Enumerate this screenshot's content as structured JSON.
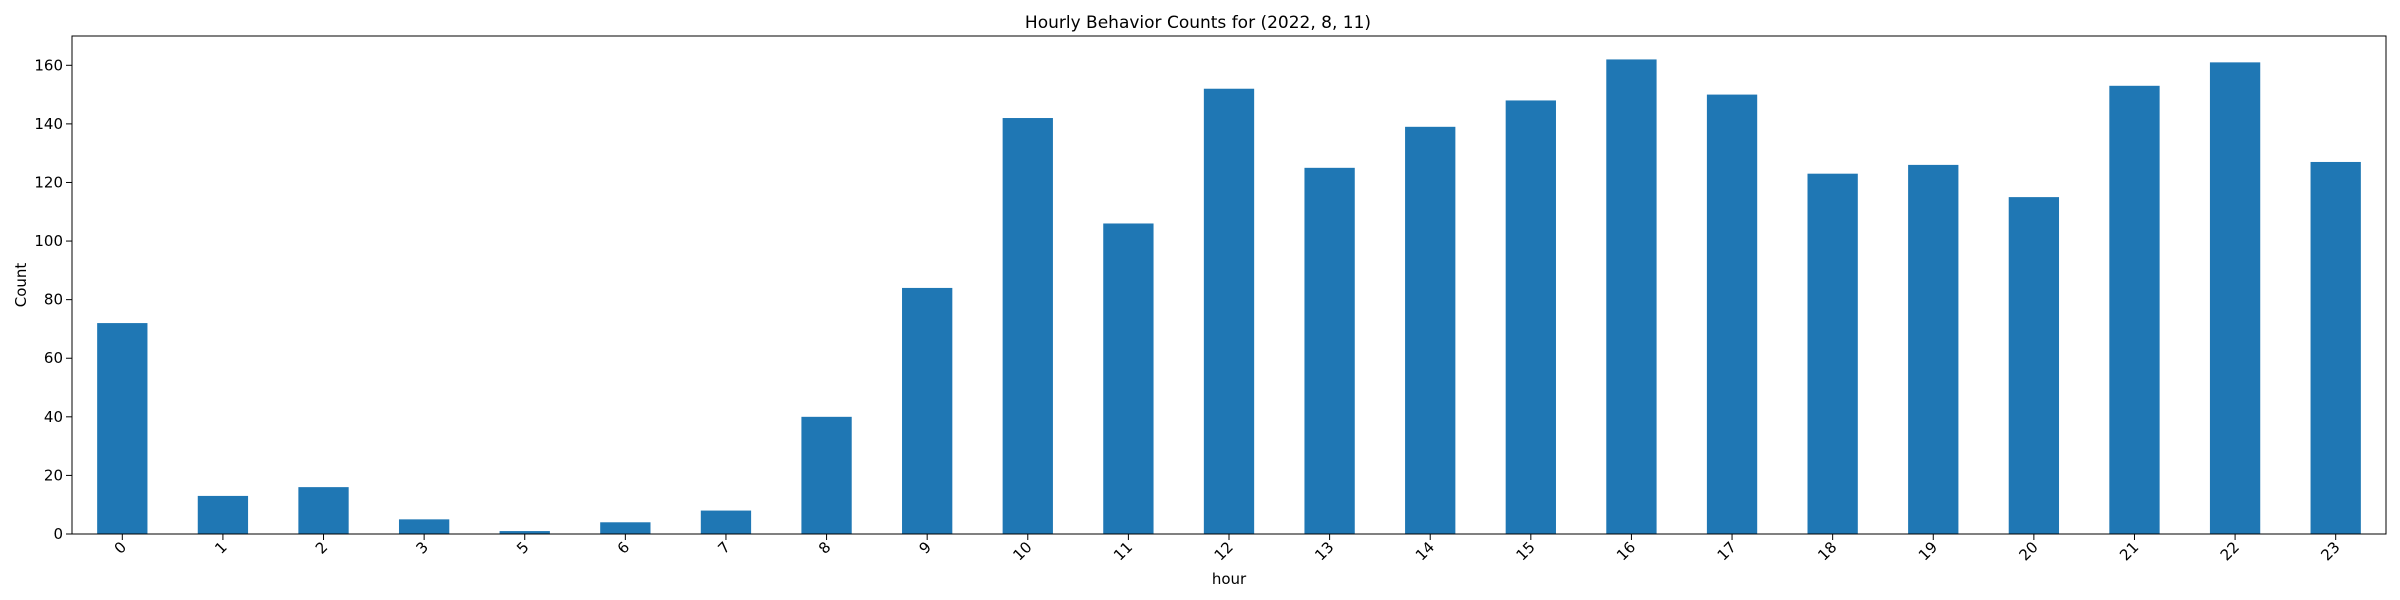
{
  "chart_data": {
    "type": "bar",
    "title": "Hourly Behavior Counts for (2022, 8, 11)",
    "xlabel": "hour",
    "ylabel": "Count",
    "categories": [
      "0",
      "1",
      "2",
      "3",
      "5",
      "6",
      "7",
      "8",
      "9",
      "10",
      "11",
      "12",
      "13",
      "14",
      "15",
      "16",
      "17",
      "18",
      "19",
      "20",
      "21",
      "22",
      "23"
    ],
    "values": [
      72,
      13,
      16,
      5,
      1,
      4,
      8,
      40,
      84,
      142,
      106,
      152,
      125,
      139,
      148,
      162,
      150,
      123,
      126,
      115,
      153,
      161,
      127
    ],
    "ylim": [
      0,
      170
    ],
    "yticks": [
      "0",
      "20",
      "40",
      "60",
      "80",
      "100",
      "120",
      "140",
      "160"
    ],
    "bar_color": "#1f77b4",
    "grid": false,
    "legend": "none"
  }
}
